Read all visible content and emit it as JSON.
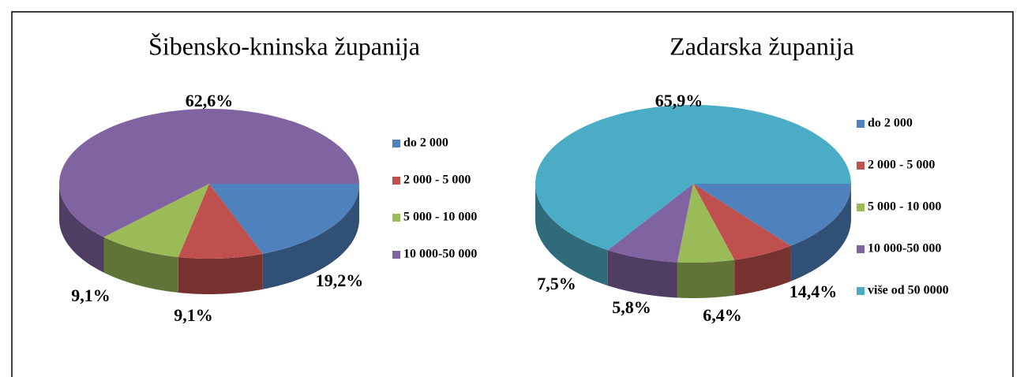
{
  "chart_data": [
    {
      "type": "pie3d",
      "title": "Šibensko-kninska županija",
      "categories": [
        "do 2 000",
        "2 000 - 5 000",
        "5 000 - 10 000",
        "10 000-50 000"
      ],
      "values": [
        19.2,
        9.1,
        9.1,
        62.6
      ],
      "value_labels": [
        "19,2%",
        "9,1%",
        "9,1%",
        "62,6%"
      ],
      "colors": [
        "#4f81bd",
        "#c0504d",
        "#9bbb59",
        "#8064a2"
      ]
    },
    {
      "type": "pie3d",
      "title": "Zadarska županija",
      "categories": [
        "do 2 000",
        "2 000 - 5 000",
        "5 000 - 10 000",
        "10 000-50 000",
        "više od 50 0000"
      ],
      "values": [
        14.4,
        6.4,
        5.8,
        7.5,
        65.9
      ],
      "value_labels": [
        "14,4%",
        "6,4%",
        "5,8%",
        "7,5%",
        "65,9%"
      ],
      "colors": [
        "#4f81bd",
        "#c0504d",
        "#9bbb59",
        "#8064a2",
        "#4bacc6"
      ]
    }
  ]
}
